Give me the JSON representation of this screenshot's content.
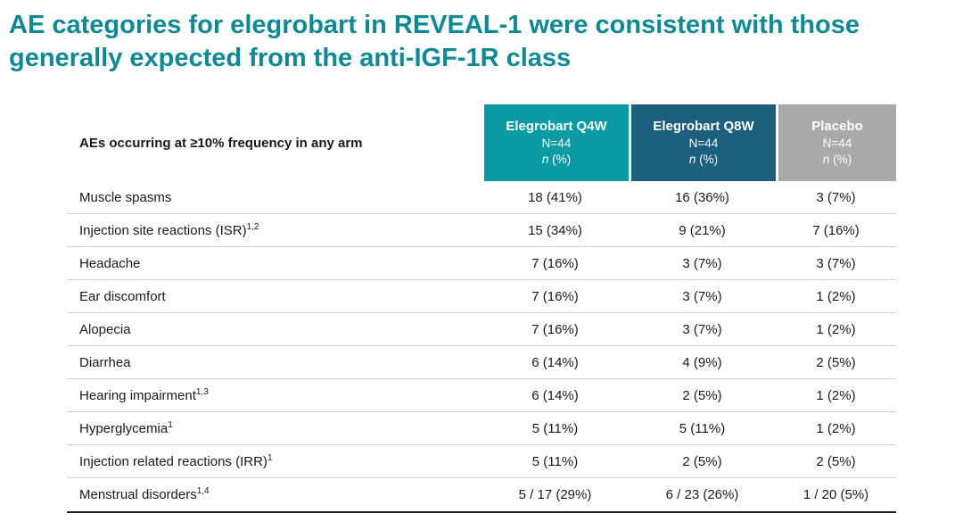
{
  "title": "AE categories for elegrobart in REVEAL-1 were consistent with those generally expected from the anti-IGF-1R class",
  "colors": {
    "title": "#0d8a96",
    "q4w_header_bg": "#0a9ba4",
    "q8w_header_bg": "#1b5e7e",
    "placebo_header_bg": "#a9a9a9",
    "header_text": "#ffffff"
  },
  "table": {
    "row_header": "AEs occurring at ≥10% frequency in any arm",
    "columns": [
      {
        "label": "Elegrobart Q4W",
        "n": "N=44",
        "unit_n": "n",
        "unit_pct": " (%)",
        "color": "#0a9ba4"
      },
      {
        "label": "Elegrobart Q8W",
        "n": "N=44",
        "unit_n": "n",
        "unit_pct": " (%)",
        "color": "#1b5e7e"
      },
      {
        "label": "Placebo",
        "n": "N=44",
        "unit_n": "n",
        "unit_pct": " (%)",
        "color": "#a9a9a9"
      }
    ],
    "rows": [
      {
        "label": "Muscle spasms",
        "sup": "",
        "values": [
          "18 (41%)",
          "16 (36%)",
          "3 (7%)"
        ]
      },
      {
        "label": "Injection site reactions (ISR)",
        "sup": "1,2",
        "values": [
          "15 (34%)",
          "9 (21%)",
          "7 (16%)"
        ]
      },
      {
        "label": "Headache",
        "sup": "",
        "values": [
          "7 (16%)",
          "3 (7%)",
          "3 (7%)"
        ]
      },
      {
        "label": "Ear discomfort",
        "sup": "",
        "values": [
          "7 (16%)",
          "3 (7%)",
          "1 (2%)"
        ]
      },
      {
        "label": "Alopecia",
        "sup": "",
        "values": [
          "7 (16%)",
          "3 (7%)",
          "1 (2%)"
        ]
      },
      {
        "label": "Diarrhea",
        "sup": "",
        "values": [
          "6 (14%)",
          "4 (9%)",
          "2 (5%)"
        ]
      },
      {
        "label": "Hearing impairment",
        "sup": "1,3",
        "values": [
          "6 (14%)",
          "2 (5%)",
          "1 (2%)"
        ]
      },
      {
        "label": "Hyperglycemia",
        "sup": "1",
        "values": [
          "5 (11%)",
          "5 (11%)",
          "1 (2%)"
        ]
      },
      {
        "label": "Injection related reactions (IRR)",
        "sup": "1",
        "values": [
          "5 (11%)",
          "2 (5%)",
          "2 (5%)"
        ]
      },
      {
        "label": "Menstrual disorders",
        "sup": "1,4",
        "values": [
          "5 / 17 (29%)",
          "6 / 23 (26%)",
          "1 / 20 (5%)"
        ]
      }
    ]
  }
}
